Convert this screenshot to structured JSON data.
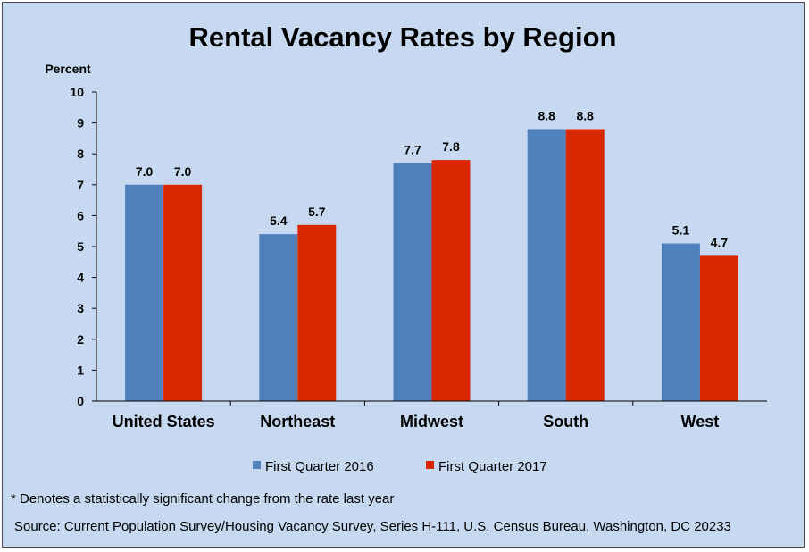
{
  "chart_data": {
    "type": "bar",
    "title": "Rental Vacancy Rates by Region",
    "ylabel": "Percent",
    "xlabel": "",
    "categories": [
      "United States",
      "Northeast",
      "Midwest",
      "South",
      "West"
    ],
    "series": [
      {
        "name": "First Quarter 2016",
        "values": [
          7.0,
          5.4,
          7.7,
          8.8,
          5.1
        ],
        "color": "#4f81bd"
      },
      {
        "name": "First Quarter 2017",
        "values": [
          7.0,
          5.7,
          7.8,
          8.8,
          4.7
        ],
        "color": "#d92700"
      }
    ],
    "data_labels": [
      [
        "7.0",
        "5.4",
        "7.7",
        "8.8",
        "5.1"
      ],
      [
        "7.0",
        "5.7",
        "7.8",
        "8.8",
        "4.7"
      ]
    ],
    "ylim": [
      0,
      10
    ],
    "yticks": [
      "0",
      "1",
      "2",
      "3",
      "4",
      "5",
      "6",
      "7",
      "8",
      "9",
      "10"
    ],
    "grid": false,
    "legend_position": "bottom"
  },
  "notes": {
    "footnote": "* Denotes a statistically significant change from the rate last year",
    "source": "Source: Current Population Survey/Housing Vacancy Survey, Series H-111, U.S. Census Bureau, Washington, DC 20233"
  },
  "colors": {
    "background": "#c6d9f1",
    "series_2016": "#4f81bd",
    "series_2017": "#d92700"
  }
}
